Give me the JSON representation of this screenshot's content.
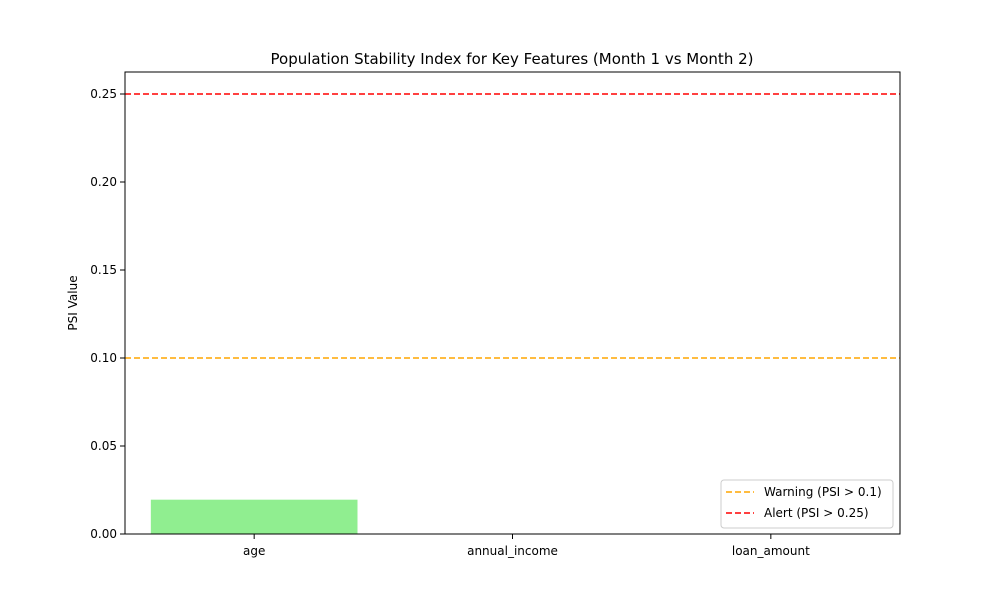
{
  "chart_data": {
    "type": "bar",
    "title": "Population Stability Index for Key Features (Month 1 vs Month 2)",
    "xlabel": "",
    "ylabel": "PSI Value",
    "categories": [
      "age",
      "annual_income",
      "loan_amount"
    ],
    "values": [
      0.0195,
      0.0,
      0.0
    ],
    "bar_color": "#90ee90",
    "ylim": [
      0,
      0.2625
    ],
    "yticks": [
      0.0,
      0.05,
      0.1,
      0.15,
      0.2,
      0.25
    ],
    "ytick_labels": [
      "0.00",
      "0.05",
      "0.10",
      "0.15",
      "0.20",
      "0.25"
    ],
    "grid": false,
    "reference_lines": [
      {
        "label": "Warning (PSI > 0.1)",
        "value": 0.1,
        "color": "#ffa500",
        "style": "dashed"
      },
      {
        "label": "Alert (PSI > 0.25)",
        "value": 0.25,
        "color": "#ff0000",
        "style": "dashed"
      }
    ],
    "legend_position": "lower right"
  }
}
